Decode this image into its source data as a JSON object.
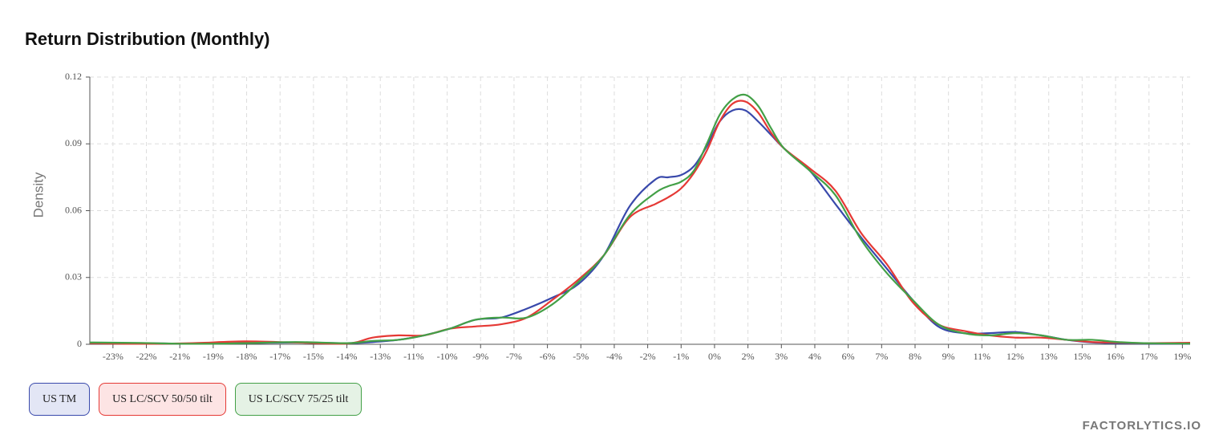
{
  "chart_data": {
    "type": "line",
    "title": "Return Distribution (Monthly)",
    "y_label": "Density",
    "watermark": "FACTORLYTICS.IO",
    "grid": true,
    "xlim": [
      -24,
      18.8
    ],
    "ylim": [
      0,
      0.12
    ],
    "yticks": [
      0,
      0.03,
      0.06,
      0.09,
      0.12
    ],
    "xticks": [
      {
        "value": -23.1,
        "label": "-23%"
      },
      {
        "value": -21.8,
        "label": "-22%"
      },
      {
        "value": -20.5,
        "label": "-21%"
      },
      {
        "value": -19.2,
        "label": "-19%"
      },
      {
        "value": -17.9,
        "label": "-18%"
      },
      {
        "value": -16.6,
        "label": "-17%"
      },
      {
        "value": -15.3,
        "label": "-15%"
      },
      {
        "value": -14.0,
        "label": "-14%"
      },
      {
        "value": -12.7,
        "label": "-13%"
      },
      {
        "value": -11.4,
        "label": "-11%"
      },
      {
        "value": -10.1,
        "label": "-10%"
      },
      {
        "value": -8.8,
        "label": "-9%"
      },
      {
        "value": -7.5,
        "label": "-7%"
      },
      {
        "value": -6.2,
        "label": "-6%"
      },
      {
        "value": -4.9,
        "label": "-5%"
      },
      {
        "value": -3.6,
        "label": "-4%"
      },
      {
        "value": -2.3,
        "label": "-2%"
      },
      {
        "value": -1.0,
        "label": "-1%"
      },
      {
        "value": 0.3,
        "label": "0%"
      },
      {
        "value": 1.6,
        "label": "2%"
      },
      {
        "value": 2.9,
        "label": "3%"
      },
      {
        "value": 4.2,
        "label": "4%"
      },
      {
        "value": 5.5,
        "label": "6%"
      },
      {
        "value": 6.8,
        "label": "7%"
      },
      {
        "value": 8.1,
        "label": "8%"
      },
      {
        "value": 9.4,
        "label": "9%"
      },
      {
        "value": 10.7,
        "label": "11%"
      },
      {
        "value": 12.0,
        "label": "12%"
      },
      {
        "value": 13.3,
        "label": "13%"
      },
      {
        "value": 14.6,
        "label": "15%"
      },
      {
        "value": 15.9,
        "label": "16%"
      },
      {
        "value": 17.2,
        "label": "17%"
      },
      {
        "value": 18.5,
        "label": "19%"
      }
    ],
    "x": [
      -24,
      -22,
      -20,
      -18,
      -16,
      -14,
      -13,
      -12,
      -11,
      -10,
      -9,
      -8,
      -7,
      -6,
      -5,
      -4,
      -3,
      -2,
      -1.5,
      -1,
      -0.5,
      0,
      0.5,
      1,
      1.5,
      2,
      2.5,
      3,
      4,
      5,
      6,
      7,
      8,
      9,
      10,
      11,
      12,
      13,
      14,
      15,
      16,
      17,
      18.8
    ],
    "series": [
      {
        "name": "US TM",
        "color": "#3949ab",
        "fill": "#e3e6f5",
        "values": [
          0.0005,
          0.0005,
          0.0002,
          0.0005,
          0.0008,
          0.0005,
          0.001,
          0.002,
          0.004,
          0.007,
          0.011,
          0.012,
          0.016,
          0.021,
          0.027,
          0.04,
          0.062,
          0.074,
          0.075,
          0.076,
          0.08,
          0.089,
          0.1,
          0.105,
          0.105,
          0.1,
          0.094,
          0.088,
          0.078,
          0.063,
          0.048,
          0.034,
          0.02,
          0.008,
          0.005,
          0.005,
          0.0055,
          0.004,
          0.002,
          0.0008,
          0.0005,
          0.0003,
          0.0003
        ]
      },
      {
        "name": "US LC/SCV 50/50 tilt",
        "color": "#e53935",
        "fill": "#fde4e4",
        "values": [
          0.0005,
          0.0002,
          0.0005,
          0.0013,
          0.0008,
          0.0003,
          0.003,
          0.004,
          0.004,
          0.007,
          0.008,
          0.009,
          0.012,
          0.02,
          0.029,
          0.04,
          0.057,
          0.063,
          0.066,
          0.07,
          0.077,
          0.087,
          0.1,
          0.108,
          0.109,
          0.104,
          0.095,
          0.088,
          0.079,
          0.069,
          0.05,
          0.036,
          0.019,
          0.009,
          0.006,
          0.004,
          0.003,
          0.003,
          0.002,
          0.001,
          0.0008,
          0.0005,
          0.0007
        ]
      },
      {
        "name": "US LC/SCV 75/25 tilt",
        "color": "#43a047",
        "fill": "#e5f2e5",
        "values": [
          0.0008,
          0.0006,
          0.0002,
          0.0005,
          0.001,
          0.0005,
          0.0015,
          0.002,
          0.004,
          0.007,
          0.011,
          0.012,
          0.012,
          0.018,
          0.028,
          0.04,
          0.058,
          0.068,
          0.071,
          0.073,
          0.078,
          0.09,
          0.103,
          0.11,
          0.112,
          0.107,
          0.097,
          0.088,
          0.078,
          0.067,
          0.047,
          0.032,
          0.02,
          0.009,
          0.005,
          0.004,
          0.005,
          0.004,
          0.002,
          0.002,
          0.001,
          0.0005,
          0.0003
        ]
      }
    ]
  }
}
